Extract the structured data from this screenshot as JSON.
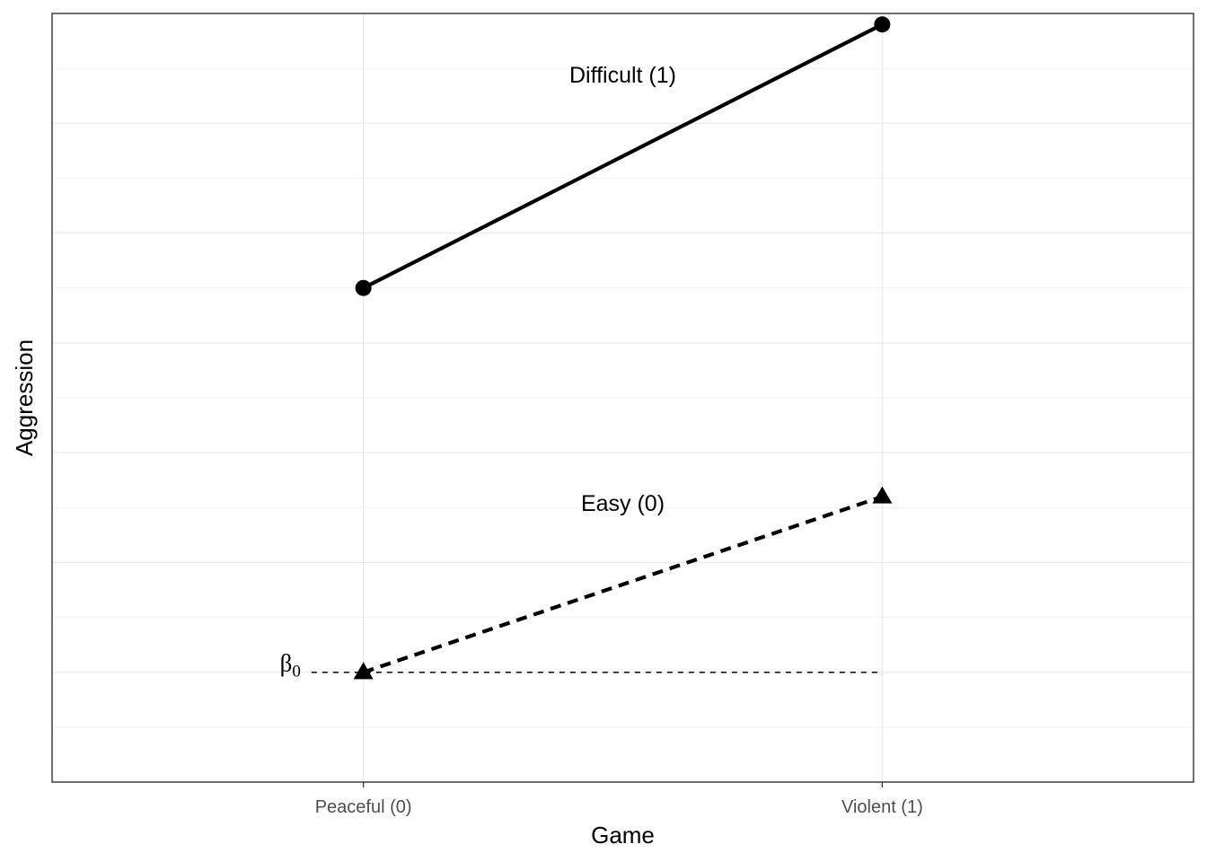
{
  "chart_data": {
    "type": "line",
    "xlabel": "Game",
    "ylabel": "Aggression",
    "categories": [
      "Peaceful (0)",
      "Violent (1)"
    ],
    "x": [
      0,
      1
    ],
    "xlim": [
      -0.6,
      1.6
    ],
    "ylim": [
      -1,
      6
    ],
    "y_ticks_labeled": false,
    "grid": true,
    "series": [
      {
        "name": "Difficult (1)",
        "x": [
          0,
          1
        ],
        "values": [
          3.5,
          5.9
        ],
        "marker": "circle",
        "line_style": "solid",
        "color": "#000000"
      },
      {
        "name": "Easy (0)",
        "x": [
          0,
          1
        ],
        "values": [
          0.0,
          1.6
        ],
        "marker": "triangle",
        "line_style": "dashed",
        "color": "#000000"
      }
    ],
    "annotations": [
      {
        "text": "β",
        "subscript": "0",
        "meaning": "intercept",
        "y": 0.0,
        "reference_line_x": [
          -0.1,
          1.0
        ],
        "line_style": "dashed"
      }
    ],
    "colors": {
      "background": "#ffffff",
      "panel_border": "#333333",
      "grid": "#ebebeb",
      "tick_text": "#4d4d4d",
      "ink": "#000000"
    }
  }
}
